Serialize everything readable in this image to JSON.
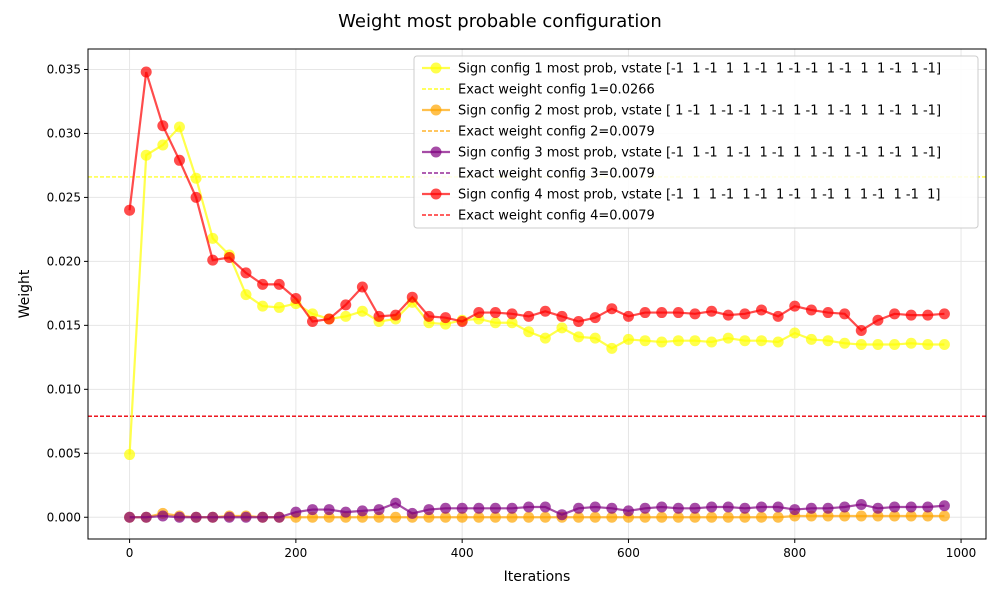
{
  "chart_data": {
    "type": "line",
    "title": "Weight most probable configuration",
    "xlabel": "Iterations",
    "ylabel": "Weight",
    "xlim": [
      -50,
      1030
    ],
    "ylim": [
      -0.0017,
      0.0366
    ],
    "xticks": [
      0,
      200,
      400,
      600,
      800,
      1000
    ],
    "yticks": [
      0.0,
      0.005,
      0.01,
      0.015,
      0.02,
      0.025,
      0.03,
      0.035
    ],
    "ytick_labels": [
      "0.000",
      "0.005",
      "0.010",
      "0.015",
      "0.020",
      "0.025",
      "0.030",
      "0.035"
    ],
    "grid": true,
    "legend_position": "top-right",
    "x": [
      0,
      20,
      40,
      60,
      80,
      100,
      120,
      140,
      160,
      180,
      200,
      220,
      240,
      260,
      280,
      300,
      320,
      340,
      360,
      380,
      400,
      420,
      440,
      460,
      480,
      500,
      520,
      540,
      560,
      580,
      600,
      620,
      640,
      660,
      680,
      700,
      720,
      740,
      760,
      780,
      800,
      820,
      840,
      860,
      880,
      900,
      920,
      940,
      960,
      980
    ],
    "series": [
      {
        "name": "Sign config 1 most prob, vstate [-1  1 -1  1  1 -1  1 -1 -1  1 -1  1  1 -1  1 -1]",
        "color": "#ffff00",
        "values": [
          0.0049,
          0.0283,
          0.0291,
          0.0305,
          0.0265,
          0.0218,
          0.0205,
          0.0174,
          0.0165,
          0.0164,
          0.0167,
          0.0159,
          0.0155,
          0.0157,
          0.0161,
          0.0153,
          0.0155,
          0.0168,
          0.0152,
          0.0151,
          0.0154,
          0.0155,
          0.0152,
          0.0152,
          0.0145,
          0.014,
          0.0148,
          0.0141,
          0.014,
          0.0132,
          0.0139,
          0.0138,
          0.0137,
          0.0138,
          0.0138,
          0.0137,
          0.014,
          0.0138,
          0.0138,
          0.0137,
          0.0144,
          0.0139,
          0.0138,
          0.0136,
          0.0135,
          0.0135,
          0.0135,
          0.0136,
          0.0135,
          0.0135
        ]
      },
      {
        "name": "Sign config 2 most prob, vstate [ 1 -1  1 -1 -1  1 -1  1 -1  1 -1  1  1 -1  1 -1]",
        "color": "#ffa500",
        "values": [
          0.0,
          0.0,
          0.0003,
          0.0001,
          0.0,
          0.0,
          0.0001,
          0.0001,
          0.0,
          0.0,
          0.0,
          0.0,
          0.0,
          0.0,
          0.0,
          0.0,
          0.0,
          0.0,
          0.0,
          0.0,
          0.0,
          0.0,
          0.0,
          0.0,
          0.0,
          0.0,
          0.0,
          0.0,
          0.0,
          0.0,
          0.0,
          0.0,
          0.0,
          0.0,
          0.0,
          0.0,
          0.0,
          0.0,
          0.0,
          0.0,
          0.0001,
          0.0001,
          0.0001,
          0.0001,
          0.0001,
          0.0001,
          0.0001,
          0.0001,
          0.0001,
          0.0001
        ]
      },
      {
        "name": "Sign config 3 most prob, vstate [-1  1 -1  1 -1  1 -1  1  1 -1  1 -1  1 -1  1 -1]",
        "color": "#800080",
        "values": [
          0.0,
          0.0,
          0.0001,
          0.0,
          0.0,
          0.0,
          0.0,
          0.0,
          0.0,
          0.0,
          0.0004,
          0.0006,
          0.0006,
          0.0004,
          0.0005,
          0.0006,
          0.0011,
          0.0003,
          0.0006,
          0.0007,
          0.0007,
          0.0007,
          0.0007,
          0.0007,
          0.0008,
          0.0008,
          0.0002,
          0.0007,
          0.0008,
          0.0007,
          0.0005,
          0.0007,
          0.0008,
          0.0007,
          0.0007,
          0.0008,
          0.0008,
          0.0007,
          0.0008,
          0.0008,
          0.0006,
          0.0007,
          0.0007,
          0.0008,
          0.001,
          0.0007,
          0.0008,
          0.0008,
          0.0008,
          0.0009
        ]
      },
      {
        "name": "Sign config 4 most prob, vstate [-1  1  1 -1  1 -1  1 -1  1 -1  1  1 -1  1 -1  1]",
        "color": "#ff0000",
        "values": [
          0.024,
          0.0348,
          0.0306,
          0.0279,
          0.025,
          0.0201,
          0.0203,
          0.0191,
          0.0182,
          0.0182,
          0.0171,
          0.0153,
          0.0155,
          0.0166,
          0.018,
          0.0157,
          0.0158,
          0.0172,
          0.0157,
          0.0156,
          0.0153,
          0.016,
          0.016,
          0.0159,
          0.0157,
          0.0161,
          0.0157,
          0.0153,
          0.0156,
          0.0163,
          0.0157,
          0.016,
          0.016,
          0.016,
          0.0159,
          0.0161,
          0.0158,
          0.0159,
          0.0162,
          0.0157,
          0.0165,
          0.0162,
          0.016,
          0.0159,
          0.0146,
          0.0154,
          0.0159,
          0.0158,
          0.0158,
          0.0159
        ]
      }
    ],
    "reference_lines": [
      {
        "name": "Exact weight config 1=0.0266",
        "value": 0.0266,
        "color": "#ffff00"
      },
      {
        "name": "Exact weight config 2=0.0079",
        "value": 0.0079,
        "color": "#ffa500"
      },
      {
        "name": "Exact weight config 3=0.0079",
        "value": 0.0079,
        "color": "#800080"
      },
      {
        "name": "Exact weight config 4=0.0079",
        "value": 0.0079,
        "color": "#ff0000"
      }
    ]
  }
}
